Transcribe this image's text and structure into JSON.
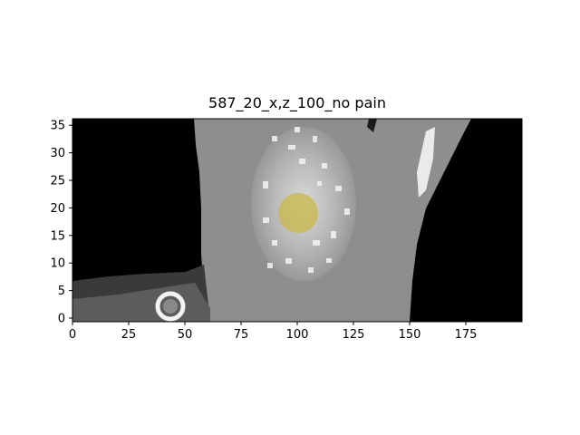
{
  "chart_data": {
    "type": "heatmap",
    "title": "587_20_x,z_100_no pain",
    "xlabel": "",
    "ylabel": "",
    "xlim": [
      0,
      200
    ],
    "ylim": [
      0,
      36
    ],
    "x_ticks": [
      "0",
      "25",
      "50",
      "75",
      "100",
      "125",
      "150",
      "175"
    ],
    "y_ticks": [
      "0",
      "5",
      "10",
      "15",
      "20",
      "25",
      "30",
      "35"
    ],
    "grid": false,
    "overlay": {
      "shape": "circle",
      "center": [
        100,
        19
      ],
      "radius_x_units": 9,
      "color": "#c8b84a"
    },
    "colormap": "gray",
    "description_of_content": ""
  }
}
